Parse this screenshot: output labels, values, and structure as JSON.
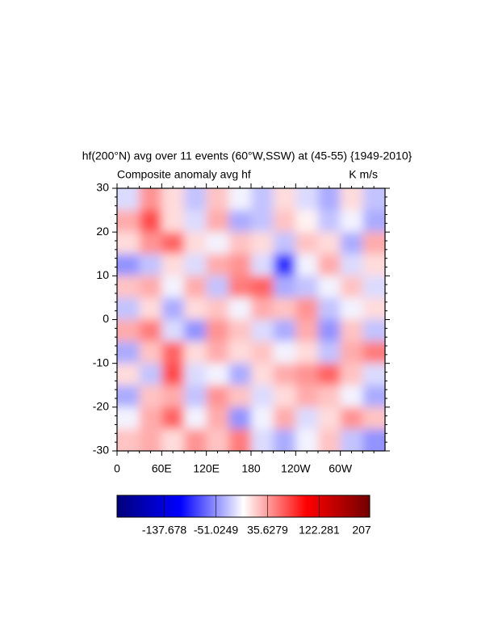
{
  "chart_data": {
    "type": "heatmap",
    "title": "hf(200°N) avg over 11 events (60°W,SSW) at (45-55) {1949-2010}",
    "subtitle_left": "Composite anomaly avg hf",
    "subtitle_right": "K m/s",
    "x": [
      15,
      45,
      75,
      105,
      135,
      165,
      195,
      225,
      255,
      285,
      315,
      345
    ],
    "y": [
      27.5,
      22.5,
      17.5,
      12.5,
      7.5,
      2.5,
      -2.5,
      -7.5,
      -12.5,
      -17.5,
      -22.5,
      -27.5
    ],
    "z": [
      [
        -20,
        40,
        10,
        -30,
        20,
        -10,
        -30,
        10,
        -20,
        -40,
        10,
        -30
      ],
      [
        30,
        70,
        10,
        -20,
        30,
        -40,
        -30,
        20,
        0,
        -30,
        -10,
        -40
      ],
      [
        10,
        40,
        60,
        10,
        -10,
        20,
        10,
        -30,
        20,
        10,
        -40,
        30
      ],
      [
        -50,
        -30,
        10,
        -20,
        30,
        40,
        -20,
        -90,
        -10,
        30,
        -20,
        10
      ],
      [
        20,
        30,
        -10,
        30,
        -30,
        50,
        60,
        -40,
        -30,
        -10,
        20,
        -20
      ],
      [
        -30,
        10,
        -40,
        10,
        20,
        -10,
        30,
        20,
        40,
        -30,
        -10,
        10
      ],
      [
        30,
        50,
        -20,
        -50,
        40,
        20,
        -20,
        -40,
        30,
        -50,
        20,
        -30
      ],
      [
        -40,
        20,
        60,
        10,
        30,
        10,
        20,
        -10,
        10,
        -30,
        30,
        50
      ],
      [
        10,
        -30,
        70,
        -20,
        -10,
        -40,
        10,
        30,
        40,
        60,
        20,
        -20
      ],
      [
        -40,
        20,
        30,
        -30,
        40,
        20,
        -20,
        10,
        30,
        20,
        -10,
        -40
      ],
      [
        -10,
        30,
        60,
        -10,
        30,
        -50,
        -10,
        30,
        -20,
        10,
        40,
        20
      ],
      [
        20,
        30,
        10,
        40,
        20,
        50,
        -20,
        -40,
        -10,
        20,
        -30,
        -50
      ]
    ],
    "xlim": [
      0,
      360
    ],
    "ylim": [
      -30,
      30
    ],
    "xticks": [
      0,
      {
        "value": 60,
        "label": "60E"
      },
      {
        "value": 120,
        "label": "120E"
      },
      180,
      {
        "value": 240,
        "label": "120W"
      },
      {
        "value": 300,
        "label": "60W"
      }
    ],
    "yticks": [
      -30,
      -20,
      -10,
      0,
      10,
      20,
      30
    ],
    "zlim": [
      -217,
      207
    ],
    "colorbar_ticks": [
      -137.678,
      -51.0249,
      35.6279,
      122.281,
      207
    ],
    "colormap": [
      "#00007a",
      "#0000ff",
      "#ffffff",
      "#ff0000",
      "#720000"
    ]
  }
}
